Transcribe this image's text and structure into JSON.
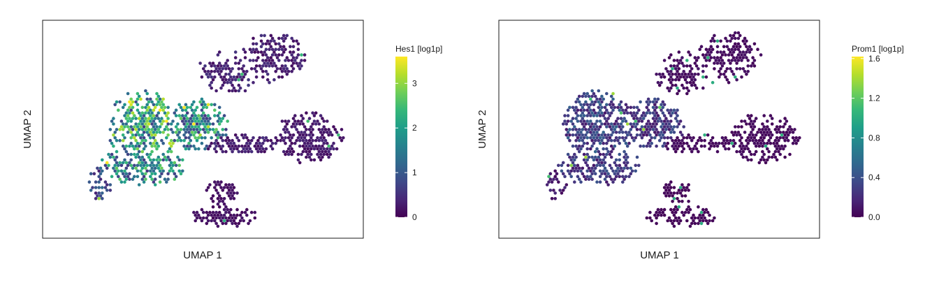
{
  "chart_data": [
    {
      "type": "hexbin-scatter",
      "xlabel": "UMAP 1",
      "ylabel": "UMAP 2",
      "legend_title": "Hes1 [log1p]",
      "colormap": "viridis",
      "color_range": [
        0,
        3.6
      ],
      "color_ticks": [
        "0",
        "1",
        "2",
        "3"
      ],
      "color_tick_values": [
        0,
        1,
        2,
        3
      ],
      "axis_ticks": "none",
      "grid": false,
      "legend_position": "right"
    },
    {
      "type": "hexbin-scatter",
      "xlabel": "UMAP 1",
      "ylabel": "UMAP 2",
      "legend_title": "Prom1 [log1p]",
      "colormap": "viridis",
      "color_range": [
        0,
        1.62
      ],
      "color_ticks": [
        "0.0",
        "0.4",
        "0.8",
        "1.2",
        "1.6"
      ],
      "color_tick_values": [
        0,
        0.4,
        0.8,
        1.2,
        1.6
      ],
      "axis_ticks": "none",
      "grid": false,
      "legend_position": "right"
    }
  ],
  "colors": {
    "viridis": [
      "#440154",
      "#482878",
      "#3e4a89",
      "#31688e",
      "#26828e",
      "#1f9e89",
      "#35b779",
      "#6ece58",
      "#b5de2b",
      "#fde725"
    ]
  }
}
